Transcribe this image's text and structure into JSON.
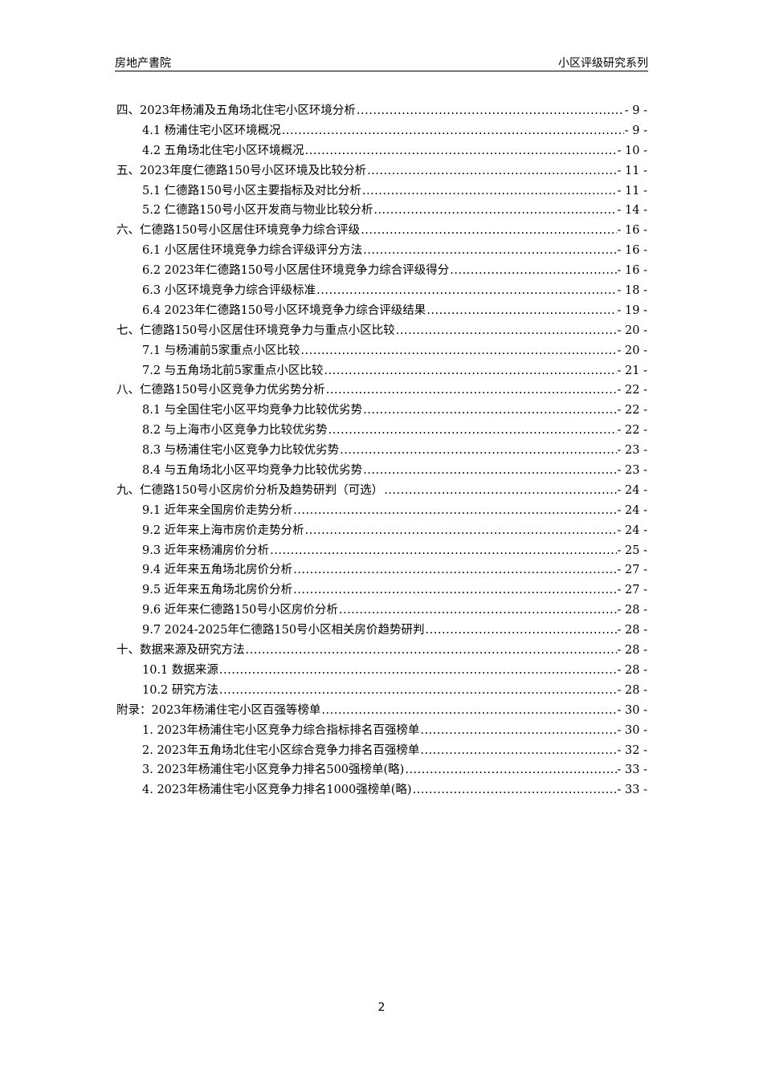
{
  "header": {
    "left": "房地产書院",
    "right": "小区评级研究系列"
  },
  "toc": [
    {
      "level": 1,
      "title": "四、2023年杨浦及五角场北住宅小区环境分析",
      "page": "- 9 -"
    },
    {
      "level": 2,
      "title": "4.1 杨浦住宅小区环境概况",
      "page": "- 9 -"
    },
    {
      "level": 2,
      "title": "4.2 五角场北住宅小区环境概况",
      "page": "- 10 -"
    },
    {
      "level": 1,
      "title": "五、2023年度仁德路150号小区环境及比较分析",
      "page": "- 11 -"
    },
    {
      "level": 2,
      "title": "5.1 仁德路150号小区主要指标及对比分析",
      "page": "- 11 -"
    },
    {
      "level": 2,
      "title": "5.2 仁德路150号小区开发商与物业比较分析",
      "page": "- 14 -"
    },
    {
      "level": 1,
      "title": "六、仁德路150号小区居住环境竞争力综合评级",
      "page": "- 16 -"
    },
    {
      "level": 2,
      "title": "6.1 小区居住环境竞争力综合评级评分方法",
      "page": "- 16 -"
    },
    {
      "level": 2,
      "title": "6.2 2023年仁德路150号小区居住环境竞争力综合评级得分",
      "page": "- 16 -"
    },
    {
      "level": 2,
      "title": "6.3 小区环境竞争力综合评级标准",
      "page": "- 18 -"
    },
    {
      "level": 2,
      "title": "6.4 2023年仁德路150号小区环境竞争力综合评级结果",
      "page": "- 19 -"
    },
    {
      "level": 1,
      "title": "七、仁德路150号小区居住环境竞争力与重点小区比较",
      "page": "- 20 -"
    },
    {
      "level": 2,
      "title": "7.1 与杨浦前5家重点小区比较",
      "page": "- 20 -"
    },
    {
      "level": 2,
      "title": "7.2 与五角场北前5家重点小区比较",
      "page": "- 21 -"
    },
    {
      "level": 1,
      "title": "八、仁德路150号小区竞争力优劣势分析",
      "page": "- 22 -"
    },
    {
      "level": 2,
      "title": "8.1 与全国住宅小区平均竞争力比较优劣势",
      "page": "- 22 -"
    },
    {
      "level": 2,
      "title": "8.2 与上海市小区竞争力比较优劣势",
      "page": "- 22 -"
    },
    {
      "level": 2,
      "title": "8.3 与杨浦住宅小区竞争力比较优劣势",
      "page": "- 23 -"
    },
    {
      "level": 2,
      "title": "8.4 与五角场北小区平均竞争力比较优劣势",
      "page": "- 23 -"
    },
    {
      "level": 1,
      "title": "九、仁德路150号小区房价分析及趋势研判（可选）",
      "page": "- 24 -"
    },
    {
      "level": 2,
      "title": "9.1 近年来全国房价走势分析",
      "page": "- 24 -"
    },
    {
      "level": 2,
      "title": "9.2 近年来上海市房价走势分析",
      "page": "- 24 -"
    },
    {
      "level": 2,
      "title": "9.3 近年来杨浦房价分析",
      "page": "- 25 -"
    },
    {
      "level": 2,
      "title": "9.4 近年来五角场北房价分析",
      "page": "- 27 -"
    },
    {
      "level": 2,
      "title": "9.5 近年来五角场北房价分析",
      "page": "- 27 -"
    },
    {
      "level": 2,
      "title": "9.6 近年来仁德路150号小区房价分析",
      "page": "- 28 -"
    },
    {
      "level": 2,
      "title": "9.7 2024-2025年仁德路150号小区相关房价趋势研判",
      "page": "- 28 -"
    },
    {
      "level": 1,
      "title": "十、数据来源及研究方法",
      "page": "- 28 -"
    },
    {
      "level": 2,
      "title": "10.1 数据来源",
      "page": "- 28 -"
    },
    {
      "level": 2,
      "title": "10.2 研究方法",
      "page": "- 28 -"
    },
    {
      "level": 1,
      "title": "附录：2023年杨浦住宅小区百强等榜单",
      "page": "- 30 -"
    },
    {
      "level": 2,
      "title": "1. 2023年杨浦住宅小区竞争力综合指标排名百强榜单",
      "page": "- 30 -"
    },
    {
      "level": 2,
      "title": "2. 2023年五角场北住宅小区综合竞争力排名百强榜单",
      "page": "- 32 -"
    },
    {
      "level": 2,
      "title": "3. 2023年杨浦住宅小区竞争力排名500强榜单(略)",
      "page": "- 33 -"
    },
    {
      "level": 2,
      "title": "4. 2023年杨浦住宅小区竞争力排名1000强榜单(略)",
      "page": "- 33 -"
    }
  ],
  "page_number": "2"
}
